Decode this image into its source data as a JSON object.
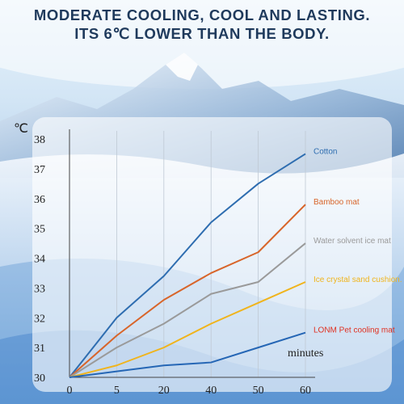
{
  "header": {
    "line1": "MODERATE COOLING, COOL AND LASTING.",
    "line2": "ITS 6℃ LOWER THAN THE BODY."
  },
  "colors": {
    "title": "#1f3a5c",
    "axis_text": "#222222",
    "panel": "#ffffff"
  },
  "chart_data": {
    "type": "line",
    "title": "",
    "xlabel": "minutes",
    "ylabel": "℃",
    "x": [
      0,
      5,
      20,
      40,
      50,
      60
    ],
    "x_tick_labels": [
      "0",
      "5",
      "20",
      "40",
      "50",
      "60"
    ],
    "y_ticks": [
      30,
      31,
      32,
      33,
      34,
      35,
      36,
      37,
      38
    ],
    "ylim": [
      30,
      38
    ],
    "grid": "vertical",
    "legend": "right, labels at line ends",
    "series": [
      {
        "name": "Cotton",
        "color": "#2e6db0",
        "values": [
          30.0,
          32.0,
          33.4,
          35.2,
          36.5,
          37.5
        ]
      },
      {
        "name": "Bamboo mat",
        "color": "#d8652a",
        "values": [
          30.0,
          31.4,
          32.6,
          33.5,
          34.2,
          35.8
        ]
      },
      {
        "name": "Water solvent ice mat",
        "color": "#9a9a9a",
        "values": [
          30.0,
          31.0,
          31.8,
          32.8,
          33.2,
          34.5
        ]
      },
      {
        "name": "Ice crystal sand cushion.",
        "color": "#f0b41c",
        "values": [
          30.0,
          30.4,
          31.0,
          31.8,
          32.5,
          33.2
        ]
      },
      {
        "name": "LONM Pet cooling mat",
        "color": "#2566b5",
        "label_color": "#e03020",
        "values": [
          30.0,
          30.2,
          30.4,
          30.5,
          31.0,
          31.5
        ]
      }
    ]
  }
}
